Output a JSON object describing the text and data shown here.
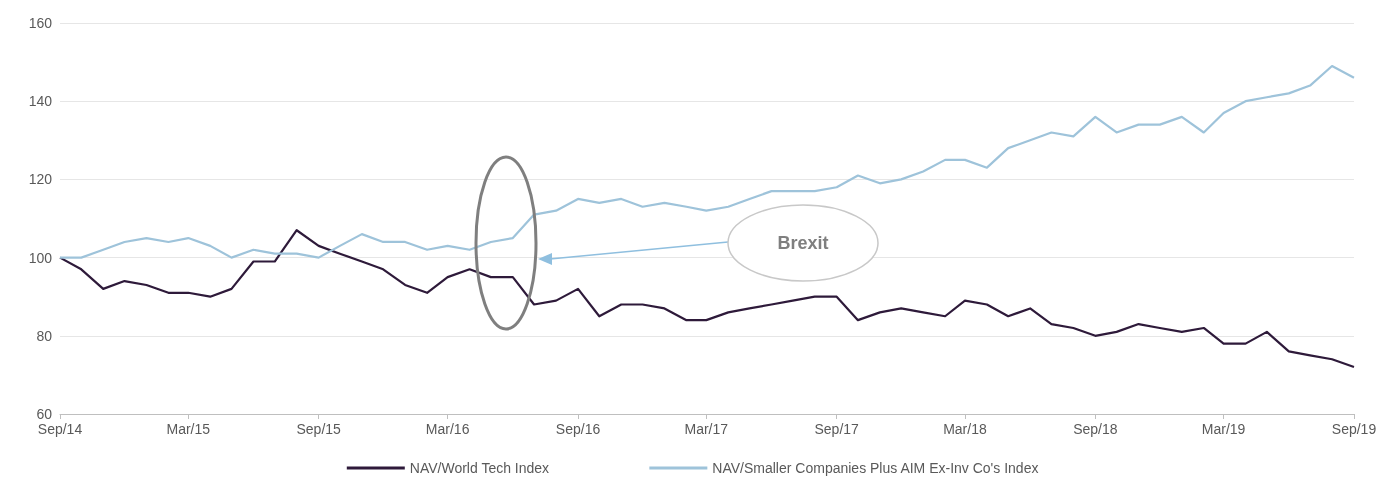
{
  "chart_data": {
    "type": "line",
    "x": [
      "2014-09-01",
      "2014-10-01",
      "2014-11-01",
      "2014-12-01",
      "2015-01-01",
      "2015-02-01",
      "2015-03-01",
      "2015-04-01",
      "2015-05-01",
      "2015-06-01",
      "2015-07-01",
      "2015-08-01",
      "2015-09-01",
      "2015-10-01",
      "2015-11-01",
      "2015-12-01",
      "2016-01-01",
      "2016-02-01",
      "2016-03-01",
      "2016-04-01",
      "2016-05-01",
      "2016-06-01",
      "2016-07-01",
      "2016-08-01",
      "2016-09-01",
      "2016-10-01",
      "2016-11-01",
      "2016-12-01",
      "2017-01-01",
      "2017-02-01",
      "2017-03-01",
      "2017-04-01",
      "2017-05-01",
      "2017-06-01",
      "2017-07-01",
      "2017-08-01",
      "2017-09-01",
      "2017-10-01",
      "2017-11-01",
      "2017-12-01",
      "2018-01-01",
      "2018-02-01",
      "2018-03-01",
      "2018-04-01",
      "2018-05-01",
      "2018-06-01",
      "2018-07-01",
      "2018-08-01",
      "2018-09-01",
      "2018-10-01",
      "2018-11-01",
      "2018-12-01",
      "2019-01-01",
      "2019-02-01",
      "2019-03-01",
      "2019-04-01",
      "2019-05-01",
      "2019-06-01",
      "2019-07-01",
      "2019-08-01",
      "2019-09-01"
    ],
    "series": [
      {
        "name": "NAV/World Tech Index",
        "color": "#2e1a3a",
        "values": [
          100,
          97,
          92,
          94,
          93,
          91,
          91,
          90,
          92,
          99,
          99,
          107,
          103,
          101,
          99,
          97,
          93,
          91,
          95,
          97,
          95,
          95,
          88,
          89,
          92,
          85,
          88,
          88,
          87,
          84,
          84,
          86,
          87,
          88,
          89,
          90,
          90,
          84,
          86,
          87,
          86,
          85,
          89,
          88,
          85,
          87,
          83,
          82,
          80,
          81,
          83,
          82,
          81,
          82,
          78,
          78,
          81,
          76,
          75,
          74,
          72
        ]
      },
      {
        "name": "NAV/Smaller Companies Plus AIM Ex-Inv Co's Index",
        "color": "#9ec3da",
        "values": [
          100,
          100,
          102,
          104,
          105,
          104,
          105,
          103,
          100,
          102,
          101,
          101,
          100,
          103,
          106,
          104,
          104,
          102,
          103,
          102,
          104,
          105,
          111,
          112,
          115,
          114,
          115,
          113,
          114,
          113,
          112,
          113,
          115,
          117,
          117,
          117,
          118,
          121,
          119,
          120,
          122,
          125,
          125,
          123,
          128,
          130,
          132,
          131,
          136,
          132,
          134,
          134,
          136,
          132,
          137,
          140,
          141,
          142,
          144,
          149,
          146
        ]
      }
    ],
    "xlim": [
      "2014-09-01",
      "2019-09-01"
    ],
    "xticks": [
      {
        "value": "2014-09-01",
        "label": "Sep/14"
      },
      {
        "value": "2015-03-01",
        "label": "Mar/15"
      },
      {
        "value": "2015-09-01",
        "label": "Sep/15"
      },
      {
        "value": "2016-03-01",
        "label": "Mar/16"
      },
      {
        "value": "2016-09-01",
        "label": "Sep/16"
      },
      {
        "value": "2017-03-01",
        "label": "Mar/17"
      },
      {
        "value": "2017-09-01",
        "label": "Sep/17"
      },
      {
        "value": "2018-03-01",
        "label": "Mar/18"
      },
      {
        "value": "2018-09-01",
        "label": "Sep/18"
      },
      {
        "value": "2019-03-01",
        "label": "Mar/19"
      },
      {
        "value": "2019-09-01",
        "label": "Sep/19"
      }
    ],
    "ylim": [
      60,
      160
    ],
    "yticks": [
      60,
      80,
      100,
      120,
      140,
      160
    ],
    "annotations": [
      "Brexit"
    ],
    "grid": "y",
    "legend": "bottom",
    "marker": "none",
    "line_style": "solid"
  }
}
